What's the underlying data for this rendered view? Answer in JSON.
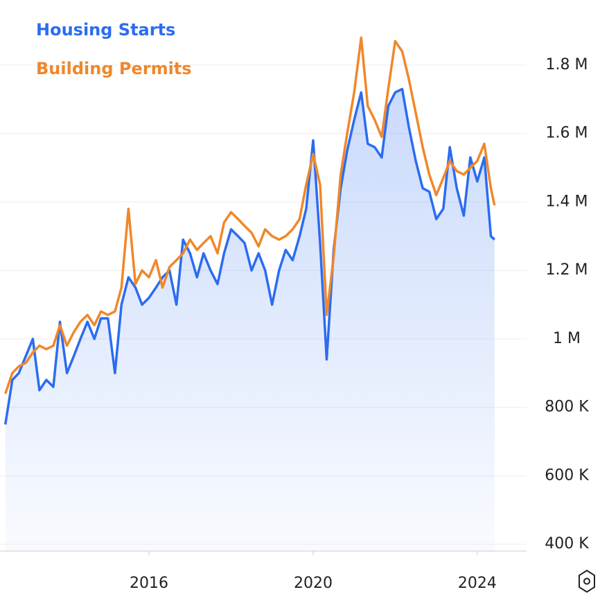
{
  "chart_data": {
    "type": "line",
    "x": [
      2012.5,
      2012.67,
      2012.83,
      2013.0,
      2013.17,
      2013.33,
      2013.5,
      2013.67,
      2013.83,
      2014.0,
      2014.17,
      2014.33,
      2014.5,
      2014.67,
      2014.83,
      2015.0,
      2015.17,
      2015.33,
      2015.5,
      2015.67,
      2015.83,
      2016.0,
      2016.17,
      2016.33,
      2016.5,
      2016.67,
      2016.83,
      2017.0,
      2017.17,
      2017.33,
      2017.5,
      2017.67,
      2017.83,
      2018.0,
      2018.17,
      2018.33,
      2018.5,
      2018.67,
      2018.83,
      2019.0,
      2019.17,
      2019.33,
      2019.5,
      2019.67,
      2019.83,
      2020.0,
      2020.17,
      2020.33,
      2020.5,
      2020.67,
      2020.83,
      2021.0,
      2021.17,
      2021.33,
      2021.5,
      2021.67,
      2021.83,
      2022.0,
      2022.17,
      2022.33,
      2022.5,
      2022.67,
      2022.83,
      2023.0,
      2023.17,
      2023.33,
      2023.5,
      2023.67,
      2023.83,
      2024.0,
      2024.17,
      2024.33,
      2024.42
    ],
    "series": [
      {
        "name": "Housing Starts",
        "color": "#2b6cf0",
        "values": [
          750000,
          880000,
          900000,
          950000,
          1000000,
          850000,
          880000,
          860000,
          1050000,
          900000,
          950000,
          1000000,
          1050000,
          1000000,
          1060000,
          1060000,
          900000,
          1100000,
          1180000,
          1150000,
          1100000,
          1120000,
          1150000,
          1180000,
          1200000,
          1100000,
          1290000,
          1250000,
          1180000,
          1250000,
          1200000,
          1160000,
          1250000,
          1320000,
          1300000,
          1280000,
          1200000,
          1250000,
          1200000,
          1100000,
          1200000,
          1260000,
          1230000,
          1300000,
          1380000,
          1580000,
          1280000,
          940000,
          1260000,
          1440000,
          1550000,
          1640000,
          1720000,
          1570000,
          1560000,
          1530000,
          1680000,
          1720000,
          1730000,
          1620000,
          1520000,
          1440000,
          1430000,
          1350000,
          1380000,
          1560000,
          1440000,
          1360000,
          1530000,
          1460000,
          1530000,
          1300000,
          1290000
        ]
      },
      {
        "name": "Building Permits",
        "color": "#f0872a",
        "values": [
          840000,
          900000,
          920000,
          930000,
          960000,
          980000,
          970000,
          980000,
          1040000,
          980000,
          1020000,
          1050000,
          1070000,
          1040000,
          1080000,
          1070000,
          1080000,
          1150000,
          1380000,
          1160000,
          1200000,
          1180000,
          1230000,
          1150000,
          1210000,
          1230000,
          1250000,
          1290000,
          1260000,
          1280000,
          1300000,
          1250000,
          1340000,
          1370000,
          1350000,
          1330000,
          1310000,
          1270000,
          1320000,
          1300000,
          1290000,
          1300000,
          1320000,
          1350000,
          1450000,
          1540000,
          1450000,
          1070000,
          1240000,
          1480000,
          1600000,
          1720000,
          1880000,
          1680000,
          1640000,
          1590000,
          1730000,
          1870000,
          1840000,
          1760000,
          1660000,
          1560000,
          1480000,
          1420000,
          1470000,
          1520000,
          1490000,
          1480000,
          1500000,
          1520000,
          1570000,
          1440000,
          1390000
        ]
      }
    ],
    "xlim": [
      2012.37,
      2025.2
    ],
    "xticks": [
      2016,
      2020,
      2024
    ],
    "ylim": [
      380000,
      1990000
    ],
    "yticks": [
      {
        "value": 400000,
        "label": "400 K"
      },
      {
        "value": 600000,
        "label": "600 K"
      },
      {
        "value": 800000,
        "label": "800 K"
      },
      {
        "value": 1000000,
        "label": "1 M"
      },
      {
        "value": 1200000,
        "label": "1.2 M"
      },
      {
        "value": 1400000,
        "label": "1.4 M"
      },
      {
        "value": 1600000,
        "label": "1.6 M"
      },
      {
        "value": 1800000,
        "label": "1.8 M"
      }
    ],
    "grid": true
  }
}
